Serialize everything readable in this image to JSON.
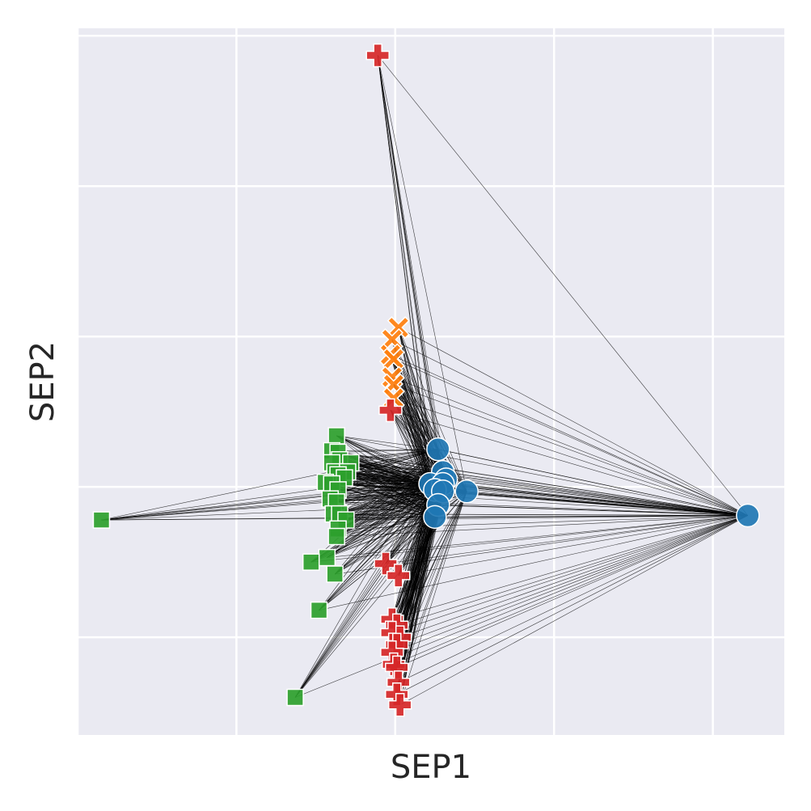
{
  "chart_data": {
    "type": "scatter",
    "title": "",
    "xlabel": "SEP1",
    "ylabel": "SEP2",
    "xlim": [
      -2.0,
      2.45
    ],
    "ylim": [
      -1.65,
      3.05
    ],
    "grid": true,
    "legend": "none",
    "colors": {
      "background": "#eaeaf2",
      "grid": "#ffffff",
      "edges": "#000000",
      "blue": "#1f77b4",
      "orange": "#ff7f0e",
      "green": "#2ca02c",
      "red": "#d62728"
    },
    "series": [
      {
        "color": "#1f77b4",
        "marker": "circle",
        "points": [
          [
            0.27,
            0.25
          ],
          [
            0.3,
            0.1
          ],
          [
            0.32,
            0.05
          ],
          [
            0.22,
            0.02
          ],
          [
            0.3,
            0.02
          ],
          [
            0.25,
            -0.02
          ],
          [
            0.3,
            -0.03
          ],
          [
            0.45,
            -0.03
          ],
          [
            0.27,
            -0.12
          ],
          [
            0.25,
            -0.2
          ],
          [
            2.22,
            -0.19
          ]
        ]
      },
      {
        "color": "#ff7f0e",
        "marker": "x",
        "points": [
          [
            0.02,
            1.06
          ],
          [
            -0.02,
            0.98
          ],
          [
            -0.03,
            0.88
          ],
          [
            -0.01,
            0.85
          ],
          [
            -0.02,
            0.73
          ],
          [
            -0.01,
            0.68
          ],
          [
            -0.01,
            0.59
          ]
        ]
      },
      {
        "color": "#2ca02c",
        "marker": "square",
        "points": [
          [
            -0.37,
            0.34
          ],
          [
            -0.4,
            0.24
          ],
          [
            -0.36,
            0.23
          ],
          [
            -0.35,
            0.18
          ],
          [
            -0.4,
            0.16
          ],
          [
            -0.28,
            0.16
          ],
          [
            -0.38,
            0.1
          ],
          [
            -0.3,
            0.1
          ],
          [
            -0.36,
            0.08
          ],
          [
            -0.32,
            0.06
          ],
          [
            -0.44,
            0.03
          ],
          [
            -0.4,
            0.02
          ],
          [
            -0.36,
            -0.02
          ],
          [
            -0.41,
            -0.08
          ],
          [
            -0.37,
            -0.1
          ],
          [
            -0.39,
            -0.18
          ],
          [
            -0.35,
            -0.18
          ],
          [
            -0.31,
            -0.22
          ],
          [
            -0.36,
            -0.28
          ],
          [
            -0.37,
            -0.33
          ],
          [
            -0.43,
            -0.47
          ],
          [
            -0.53,
            -0.5
          ],
          [
            -0.38,
            -0.58
          ],
          [
            -1.85,
            -0.22
          ],
          [
            -0.48,
            -0.82
          ],
          [
            -0.63,
            -1.4
          ]
        ]
      },
      {
        "color": "#d62728",
        "marker": "plus",
        "points": [
          [
            -0.11,
            2.87
          ],
          [
            -0.03,
            0.51
          ],
          [
            -0.06,
            -0.51
          ],
          [
            0.02,
            -0.59
          ],
          [
            -0.02,
            -0.88
          ],
          [
            0.01,
            -0.92
          ],
          [
            -0.02,
            -0.97
          ],
          [
            0.03,
            -1.0
          ],
          [
            0.01,
            -1.05
          ],
          [
            -0.02,
            -1.1
          ],
          [
            -0.01,
            -1.18
          ],
          [
            0.01,
            -1.2
          ],
          [
            0.02,
            -1.3
          ],
          [
            0.01,
            -1.38
          ],
          [
            0.03,
            -1.45
          ]
        ]
      }
    ]
  }
}
